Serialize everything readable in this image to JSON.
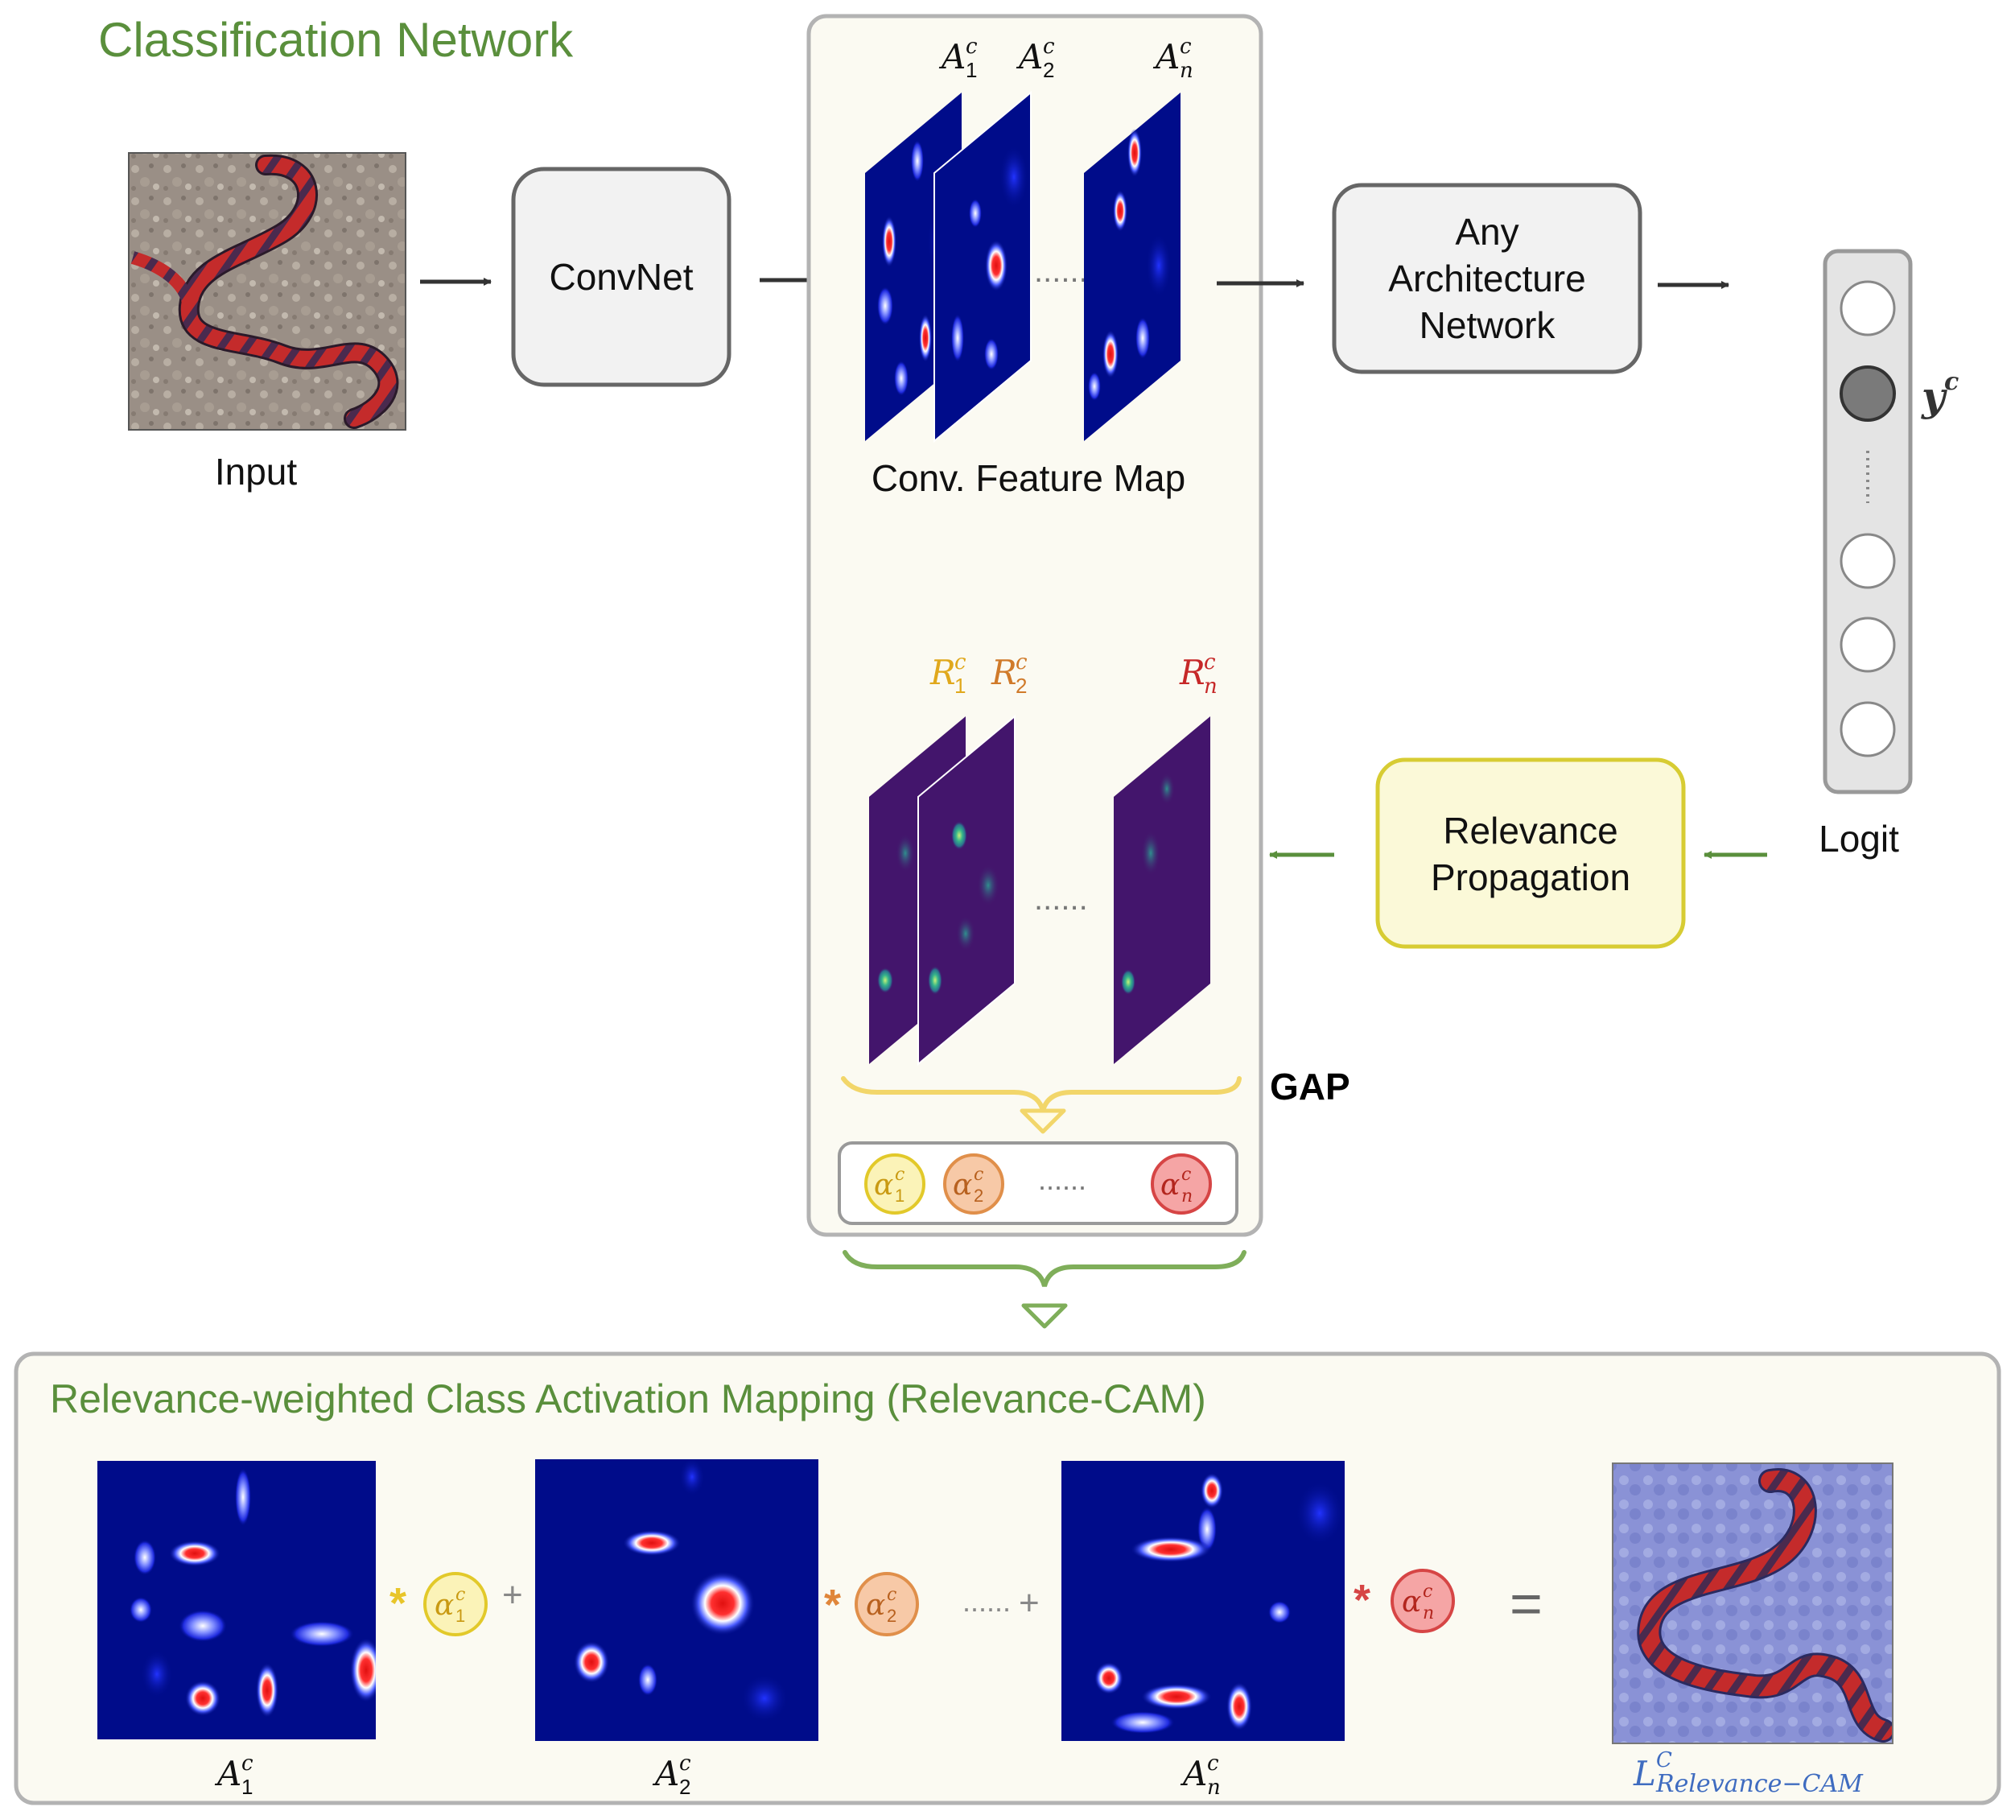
{
  "colors": {
    "green": "#5a8f3c",
    "yellow_border": "#d7cc33",
    "yellow_fill": "#fbf9d8",
    "panel_fill": "#fbfaf2",
    "panel_border": "#b3b3b3",
    "box_border": "#666666",
    "orange": "#d98a3c",
    "red": "#c62828",
    "cam_blue": "#000c8a",
    "relevance_purple": "#43156c",
    "title_blue": "#3f6cc0"
  },
  "titles": {
    "classification_network": "Classification Network",
    "relevance_cam": "Relevance-weighted Class Activation Mapping (Relevance-CAM)"
  },
  "labels": {
    "input": "Input",
    "convnet": "ConvNet",
    "feature_map": "Conv. Feature Map",
    "any_arch_1": "Any",
    "any_arch_2": "Architecture",
    "any_arch_3": "Network",
    "relevance_prop_1": "Relevance",
    "relevance_prop_2": "Propagation",
    "logit": "Logit",
    "gap": "GAP",
    "equals": "=",
    "plus": "+",
    "times": "*",
    "dots": "......"
  },
  "math": {
    "A": "A",
    "R": "R",
    "alpha": "α",
    "y": "y",
    "L": "L",
    "sup_c": "c",
    "sup_C": "C",
    "sub_1": "1",
    "sub_2": "2",
    "sub_n": "n",
    "sub_relevance_cam": "Relevance−CAM"
  },
  "icons": {
    "input_image": "snake-photo",
    "output_image": "snake-relevance-overlay"
  }
}
